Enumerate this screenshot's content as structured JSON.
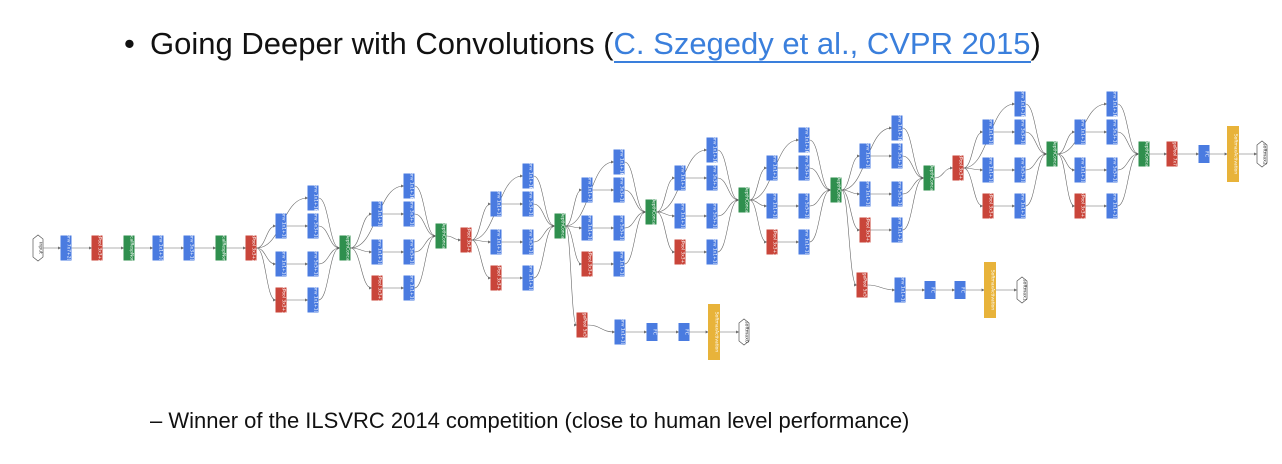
{
  "headline": {
    "bullet": "•",
    "prefix": "Going Deeper with Convolutions (",
    "link": "C. Szegedy et al., CVPR 2015",
    "suffix": ")"
  },
  "subline": "– Winner of the ILSVRC 2014 competition (close to human level performance)",
  "colors": {
    "conv": "#4a7be0",
    "pool": "#c9453a",
    "norm": "#2f8f4e",
    "concat": "#2f8f4e",
    "softmax": "#e8b33a",
    "edge": "#666666"
  },
  "diagram": {
    "input_label": "input",
    "outputs": [
      "softmax0",
      "softmax1",
      "softmax2"
    ],
    "layer_labels": {
      "conv7": "Conv 7x7+2(S)",
      "maxpool3s": "MaxPool 3x3+2(S)",
      "lrn": "LocalRespNorm",
      "conv1v": "Conv 1x1+1(V)",
      "conv3s": "Conv 3x3+1(S)",
      "conv1s": "Conv 1x1+1(S)",
      "conv5s": "Conv 5x5+1(S)",
      "maxpool1s": "MaxPool 3x3+1(S)",
      "concat": "DepthConcat",
      "avgpool5": "AveragePool 5x5+3(V)",
      "avgpool7": "AveragePool 7x7+1(V)",
      "fc": "FC",
      "softmaxact": "SoftmaxActivation"
    }
  }
}
